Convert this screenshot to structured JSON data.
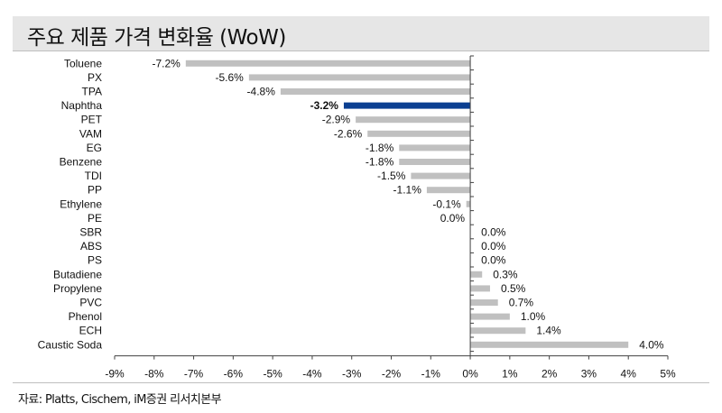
{
  "title": "주요 제품 가격 변화율 (WoW)",
  "source": "자료: Platts, Cischem, iM증권 리서치본부",
  "chart_data": {
    "type": "bar",
    "orientation": "horizontal",
    "title": "주요 제품 가격 변화율 (WoW)",
    "categories": [
      "Toluene",
      "PX",
      "TPA",
      "Naphtha",
      "PET",
      "VAM",
      "EG",
      "Benzene",
      "TDI",
      "PP",
      "Ethylene",
      "PE",
      "SBR",
      "ABS",
      "PS",
      "Butadiene",
      "Propylene",
      "PVC",
      "Phenol",
      "ECH",
      "Caustic Soda"
    ],
    "values": [
      -7.2,
      -5.6,
      -4.8,
      -3.2,
      -2.9,
      -2.6,
      -1.8,
      -1.8,
      -1.5,
      -1.1,
      -0.1,
      0.0,
      0.0,
      0.0,
      0.0,
      0.3,
      0.5,
      0.7,
      1.0,
      1.4,
      4.0
    ],
    "data_labels": [
      "-7.2%",
      "-5.6%",
      "-4.8%",
      "-3.2%",
      "-2.9%",
      "-2.6%",
      "-1.8%",
      "-1.8%",
      "-1.5%",
      "-1.1%",
      "-0.1%",
      "0.0%",
      "0.0%",
      "0.0%",
      "0.0%",
      "0.3%",
      "0.5%",
      "0.7%",
      "1.0%",
      "1.4%",
      "4.0%"
    ],
    "highlight": "Naphtha",
    "xlim": [
      -9,
      5
    ],
    "x_ticks": [
      -9,
      -8,
      -7,
      -6,
      -5,
      -4,
      -3,
      -2,
      -1,
      0,
      1,
      2,
      3,
      4,
      5
    ],
    "x_tick_labels": [
      "-9%",
      "-8%",
      "-7%",
      "-6%",
      "-5%",
      "-4%",
      "-3%",
      "-2%",
      "-1%",
      "0%",
      "1%",
      "2%",
      "3%",
      "4%",
      "5%"
    ],
    "grid": false,
    "colors": {
      "bar": "#c0c0c0",
      "highlight": "#0b3f91",
      "axis": "#404040"
    }
  }
}
